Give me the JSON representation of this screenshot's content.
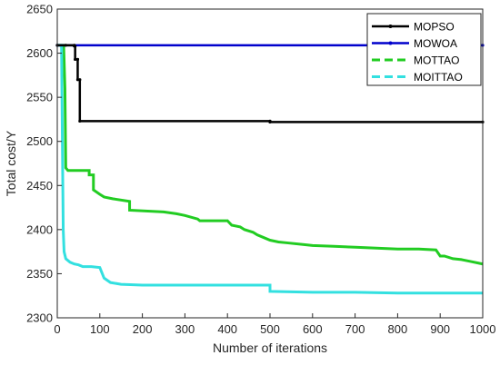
{
  "chart_data": {
    "type": "line",
    "xlabel": "Number of iterations",
    "ylabel": "Total cost/Y",
    "xlim": [
      0,
      1000
    ],
    "ylim": [
      2300,
      2650
    ],
    "xticks": [
      0,
      100,
      200,
      300,
      400,
      500,
      600,
      700,
      800,
      900,
      1000
    ],
    "yticks": [
      2300,
      2350,
      2400,
      2450,
      2500,
      2550,
      2600,
      2650
    ],
    "grid": false,
    "legend_position": "top-right",
    "series": [
      {
        "name": "MOPSO",
        "color": "#000000",
        "style": "solid",
        "marker": "dot",
        "points": [
          [
            0,
            2609
          ],
          [
            20,
            2609
          ],
          [
            40,
            2609
          ],
          [
            40,
            2608
          ],
          [
            42,
            2608
          ],
          [
            42,
            2593
          ],
          [
            48,
            2593
          ],
          [
            48,
            2570
          ],
          [
            53,
            2570
          ],
          [
            53,
            2523
          ],
          [
            500,
            2523
          ],
          [
            500,
            2522
          ],
          [
            1000,
            2522
          ]
        ]
      },
      {
        "name": "MOWOA",
        "color": "#0000cc",
        "style": "solid",
        "marker": "dot",
        "points": [
          [
            0,
            2609
          ],
          [
            1000,
            2609
          ]
        ]
      },
      {
        "name": "MOTTAO",
        "color": "#22cc22",
        "style": "dashed",
        "points": [
          [
            0,
            2609
          ],
          [
            15,
            2609
          ],
          [
            18,
            2560
          ],
          [
            20,
            2470
          ],
          [
            25,
            2467
          ],
          [
            75,
            2467
          ],
          [
            75,
            2462
          ],
          [
            85,
            2462
          ],
          [
            85,
            2445
          ],
          [
            100,
            2440
          ],
          [
            110,
            2437
          ],
          [
            130,
            2435
          ],
          [
            170,
            2432
          ],
          [
            170,
            2422
          ],
          [
            250,
            2420
          ],
          [
            280,
            2418
          ],
          [
            300,
            2416
          ],
          [
            330,
            2412
          ],
          [
            335,
            2410
          ],
          [
            400,
            2410
          ],
          [
            410,
            2405
          ],
          [
            430,
            2403
          ],
          [
            440,
            2400
          ],
          [
            460,
            2397
          ],
          [
            470,
            2394
          ],
          [
            490,
            2390
          ],
          [
            500,
            2388
          ],
          [
            520,
            2386
          ],
          [
            540,
            2385
          ],
          [
            580,
            2383
          ],
          [
            600,
            2382
          ],
          [
            650,
            2381
          ],
          [
            700,
            2380
          ],
          [
            750,
            2379
          ],
          [
            800,
            2378
          ],
          [
            850,
            2378
          ],
          [
            890,
            2377
          ],
          [
            900,
            2370
          ],
          [
            910,
            2370
          ],
          [
            930,
            2367
          ],
          [
            950,
            2366
          ],
          [
            970,
            2364
          ],
          [
            990,
            2362
          ],
          [
            1000,
            2361
          ]
        ]
      },
      {
        "name": "MOITTAO",
        "color": "#33e0e0",
        "style": "dashed",
        "points": [
          [
            0,
            2609
          ],
          [
            10,
            2609
          ],
          [
            12,
            2500
          ],
          [
            14,
            2400
          ],
          [
            16,
            2375
          ],
          [
            20,
            2367
          ],
          [
            30,
            2363
          ],
          [
            40,
            2361
          ],
          [
            50,
            2360
          ],
          [
            60,
            2358
          ],
          [
            80,
            2358
          ],
          [
            100,
            2357
          ],
          [
            110,
            2345
          ],
          [
            125,
            2340
          ],
          [
            150,
            2338
          ],
          [
            200,
            2337
          ],
          [
            300,
            2337
          ],
          [
            400,
            2337
          ],
          [
            500,
            2337
          ],
          [
            500,
            2330
          ],
          [
            600,
            2329
          ],
          [
            700,
            2329
          ],
          [
            800,
            2328
          ],
          [
            900,
            2328
          ],
          [
            1000,
            2328
          ]
        ]
      }
    ]
  }
}
